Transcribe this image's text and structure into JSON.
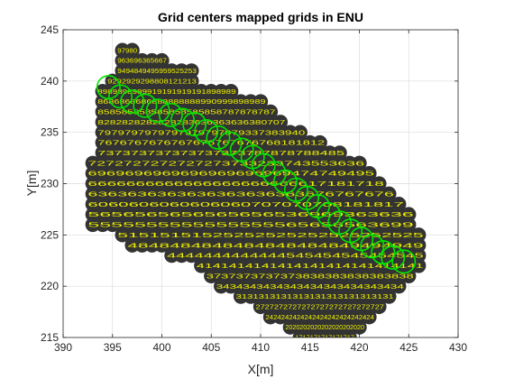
{
  "chart_data": {
    "type": "scatter",
    "title": "Grid centers mapped grids in ENU",
    "xlabel": "X[m]",
    "ylabel": "Y[m]",
    "xlim": [
      390,
      430
    ],
    "ylim": [
      215,
      245
    ],
    "xticks": [
      390,
      395,
      400,
      405,
      410,
      415,
      420,
      425,
      430
    ],
    "yticks": [
      215,
      220,
      225,
      230,
      235,
      240,
      245
    ],
    "xtick_labels": [
      "390",
      "395",
      "400",
      "405",
      "410",
      "415",
      "420",
      "425",
      "430"
    ],
    "ytick_labels": [
      "215",
      "220",
      "225",
      "230",
      "235",
      "240",
      "245"
    ],
    "grid": true,
    "grid_step_m": 1,
    "marker_color": "#333333",
    "label_color": "#f2f200",
    "highlight_color": "#00e600",
    "grid_rows": [
      {
        "y": 243,
        "x_from": 396,
        "x_to": 397,
        "labels": "97980"
      },
      {
        "y": 242,
        "x_from": 396,
        "x_to": 400,
        "labels": "963696365667"
      },
      {
        "y": 241,
        "x_from": 396,
        "x_to": 403,
        "labels": "9494849495959525253"
      },
      {
        "y": 240,
        "x_from": 395,
        "x_to": 403,
        "labels": "9292929298808121213"
      },
      {
        "y": 239,
        "x_from": 394,
        "x_to": 407,
        "labels": "8989898989919191919191898989"
      },
      {
        "y": 238,
        "x_from": 394,
        "x_to": 410,
        "labels": "8686868686888888888990999898989"
      },
      {
        "y": 237,
        "x_from": 394,
        "x_to": 411,
        "labels": "858585858585858585858787878787"
      },
      {
        "y": 236,
        "x_from": 394,
        "x_to": 412,
        "labels": "8282828282828283636363636380707"
      },
      {
        "y": 235,
        "x_from": 394,
        "x_to": 414,
        "labels": "7979797979797979797979337383940"
      },
      {
        "y": 234,
        "x_from": 394,
        "x_to": 416,
        "labels": "7676767676767676767676768181812"
      },
      {
        "y": 233,
        "x_from": 394,
        "x_to": 418,
        "labels": "737373737373737373787878788485"
      },
      {
        "y": 232,
        "x_from": 393,
        "x_to": 420,
        "labels": "7272727272727273733233743553636"
      },
      {
        "y": 231,
        "x_from": 393,
        "x_to": 421,
        "labels": "6969696969696969696969474749495"
      },
      {
        "y": 230,
        "x_from": 393,
        "x_to": 422,
        "labels": "6666666666666666666666617181718"
      },
      {
        "y": 229,
        "x_from": 393,
        "x_to": 423,
        "labels": "6363636363636363636363676767676"
      },
      {
        "y": 228,
        "x_from": 393,
        "x_to": 424,
        "labels": "6060606060606060707070708181817"
      },
      {
        "y": 227,
        "x_from": 393,
        "x_to": 425,
        "labels": "5656565656565656536969363636"
      },
      {
        "y": 226,
        "x_from": 393,
        "x_to": 425,
        "labels": "5555555555555555565656563699"
      },
      {
        "y": 225,
        "x_from": 396,
        "x_to": 426,
        "labels": "51515151525252525252525252525"
      },
      {
        "y": 224,
        "x_from": 397,
        "x_to": 426,
        "labels": "4848484848484848484849494949"
      },
      {
        "y": 223,
        "x_from": 401,
        "x_to": 426,
        "labels": "4444444444444545454545454545"
      },
      {
        "y": 222,
        "x_from": 404,
        "x_to": 426,
        "labels": "4141414141414141414141414141"
      },
      {
        "y": 221,
        "x_from": 405,
        "x_to": 425,
        "labels": "3737373737373838383838383838"
      },
      {
        "y": 220,
        "x_from": 406,
        "x_to": 424,
        "labels": "3434343434343434343434343434"
      },
      {
        "y": 219,
        "x_from": 408,
        "x_to": 423,
        "labels": "3131313131313131313131313131"
      },
      {
        "y": 218,
        "x_from": 410,
        "x_to": 422,
        "labels": "2727272727272727272727272727"
      },
      {
        "y": 217,
        "x_from": 411,
        "x_to": 421,
        "labels": "2424242424242424242424242424"
      },
      {
        "y": 216,
        "x_from": 413,
        "x_to": 420,
        "labels": "2020202020202020202020"
      },
      {
        "y": 215,
        "x_from": 414,
        "x_to": 419,
        "labels": "1717171717171717"
      },
      {
        "y": 214,
        "x_from": 415,
        "x_to": 418,
        "labels": "1115151515151"
      },
      {
        "y": 213,
        "x_from": 416,
        "x_to": 417,
        "labels": "128"
      }
    ],
    "highlight_circles": [
      {
        "x": 394.6,
        "y": 239.4
      },
      {
        "x": 395.8,
        "y": 238.5
      },
      {
        "x": 397.0,
        "y": 238.0
      },
      {
        "x": 398.3,
        "y": 237.6
      },
      {
        "x": 399.6,
        "y": 237.1
      },
      {
        "x": 400.9,
        "y": 236.7
      },
      {
        "x": 402.1,
        "y": 236.2
      },
      {
        "x": 403.3,
        "y": 235.8
      },
      {
        "x": 404.5,
        "y": 235.1
      },
      {
        "x": 405.7,
        "y": 234.5
      },
      {
        "x": 406.9,
        "y": 233.9
      },
      {
        "x": 408.1,
        "y": 233.3
      },
      {
        "x": 409.2,
        "y": 232.6
      },
      {
        "x": 410.3,
        "y": 231.8
      },
      {
        "x": 411.4,
        "y": 231.0
      },
      {
        "x": 412.5,
        "y": 230.2
      },
      {
        "x": 413.6,
        "y": 229.4
      },
      {
        "x": 414.7,
        "y": 228.6
      },
      {
        "x": 415.8,
        "y": 227.8
      },
      {
        "x": 416.9,
        "y": 227.0
      },
      {
        "x": 418.0,
        "y": 226.2
      },
      {
        "x": 419.1,
        "y": 225.4
      },
      {
        "x": 420.2,
        "y": 224.6
      },
      {
        "x": 421.3,
        "y": 223.9
      },
      {
        "x": 422.4,
        "y": 223.3
      },
      {
        "x": 423.4,
        "y": 222.8
      },
      {
        "x": 424.5,
        "y": 222.4
      }
    ]
  }
}
